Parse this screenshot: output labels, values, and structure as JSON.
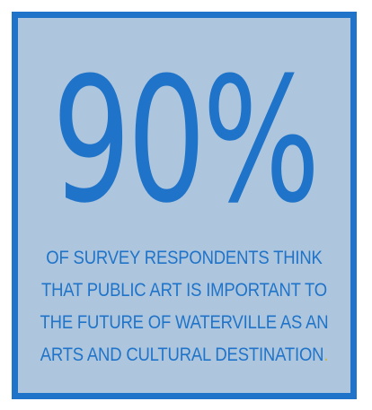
{
  "infographic": {
    "stat": "90%",
    "caption_lines": [
      "OF SURVEY RESPONDENTS THINK",
      "THAT PUBLIC ART IS IMPORTANT TO",
      "THE FUTURE OF WATERVILLE AS AN",
      "ARTS AND CULTURAL DESTINATION"
    ],
    "caption_end_mark": ".",
    "colors": {
      "border": "#1f73c9",
      "background": "#adc6dd",
      "text": "#1f73c9",
      "period_accent": "#c9b44a"
    }
  }
}
